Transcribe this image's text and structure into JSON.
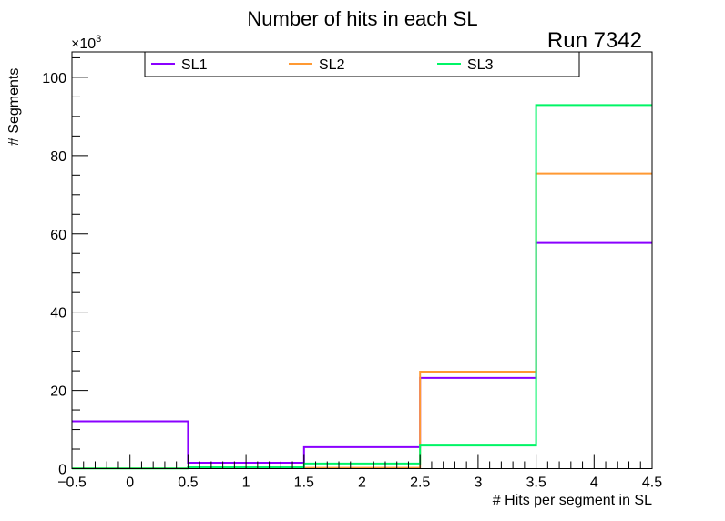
{
  "chart_data": {
    "type": "step-histogram",
    "title": "Number of hits in each SL",
    "annotation": "Run 7342",
    "xlabel": "# Hits per segment in SL",
    "ylabel": "# Segments",
    "y_multiplier": "×10",
    "y_multiplier_exp": "3",
    "xlim": [
      -0.5,
      4.5
    ],
    "ylim": [
      0,
      106.5
    ],
    "bin_edges": [
      -0.5,
      0.5,
      1.5,
      2.5,
      3.5,
      4.5
    ],
    "x_ticks": [
      "−0.5",
      "0",
      "0.5",
      "1",
      "1.5",
      "2",
      "2.5",
      "3",
      "3.5",
      "4",
      "4.5"
    ],
    "x_tick_values": [
      -0.5,
      0,
      0.5,
      1,
      1.5,
      2,
      2.5,
      3,
      3.5,
      4,
      4.5
    ],
    "y_ticks": [
      "0",
      "20",
      "40",
      "60",
      "80",
      "100"
    ],
    "y_tick_values": [
      0,
      20,
      40,
      60,
      80,
      100
    ],
    "legend_position": "top",
    "series": [
      {
        "name": "SL1",
        "color": "#8a00ff",
        "values": [
          12.1,
          1.5,
          5.5,
          23.2,
          57.7
        ]
      },
      {
        "name": "SL2",
        "color": "#ff9933",
        "values": [
          0.1,
          0.2,
          0.2,
          24.8,
          75.4
        ]
      },
      {
        "name": "SL3",
        "color": "#00f566",
        "values": [
          0.05,
          0.35,
          1.3,
          5.9,
          92.9
        ]
      }
    ]
  }
}
